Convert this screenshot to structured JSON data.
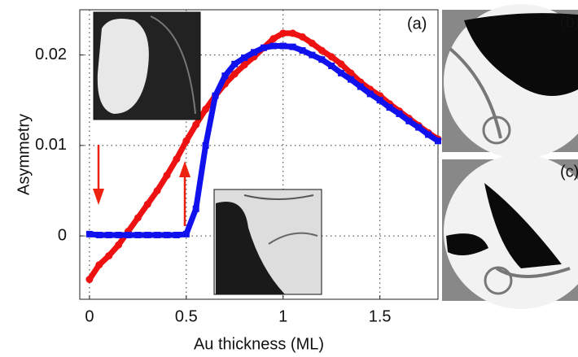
{
  "chart_data": {
    "type": "scatter",
    "x_label": "Au thickness (ML)",
    "y_label": "Asymmetry",
    "annotations": [
      "(a)",
      "(b)",
      "(c)"
    ],
    "x": [
      0,
      0.05,
      0.1,
      0.15,
      0.2,
      0.25,
      0.3,
      0.35,
      0.4,
      0.45,
      0.5,
      0.55,
      0.6,
      0.65,
      0.7,
      0.75,
      0.8,
      0.85,
      0.9,
      0.95,
      1.0,
      1.05,
      1.1,
      1.15,
      1.2,
      1.25,
      1.3,
      1.35,
      1.4,
      1.45,
      1.5,
      1.55,
      1.6,
      1.65,
      1.7,
      1.75,
      1.8
    ],
    "series": [
      {
        "color": "#ee1111",
        "marker": "circle",
        "values": [
          -0.0048,
          -0.0032,
          -0.0022,
          -0.001,
          0.0005,
          0.002,
          0.0035,
          0.005,
          0.0067,
          0.0085,
          0.0105,
          0.0123,
          0.014,
          0.0155,
          0.0168,
          0.0179,
          0.0189,
          0.0198,
          0.0208,
          0.0218,
          0.0224,
          0.0224,
          0.022,
          0.0213,
          0.0205,
          0.0198,
          0.019,
          0.018,
          0.017,
          0.0162,
          0.0155,
          0.0146,
          0.0138,
          0.013,
          0.0122,
          0.0114,
          0.0107
        ]
      },
      {
        "color": "#1111ee",
        "marker": "square",
        "values": [
          0.0002,
          0.0001,
          0.0001,
          0.0001,
          0.0001,
          0.0001,
          0.0001,
          0.0001,
          0.0001,
          0.0001,
          0.0002,
          0.003,
          0.01,
          0.0155,
          0.0177,
          0.019,
          0.0197,
          0.0203,
          0.0208,
          0.021,
          0.021,
          0.0209,
          0.0205,
          0.02,
          0.0195,
          0.0188,
          0.018,
          0.0173,
          0.0165,
          0.0157,
          0.015,
          0.0142,
          0.0135,
          0.0127,
          0.012,
          0.0112,
          0.0105
        ]
      }
    ],
    "xlim": [
      -0.05,
      1.8
    ],
    "ylim": [
      -0.007,
      0.025
    ],
    "xticks": [
      0,
      0.5,
      1,
      1.5
    ],
    "yticks": [
      0,
      0.01,
      0.02
    ],
    "grid": true
  }
}
